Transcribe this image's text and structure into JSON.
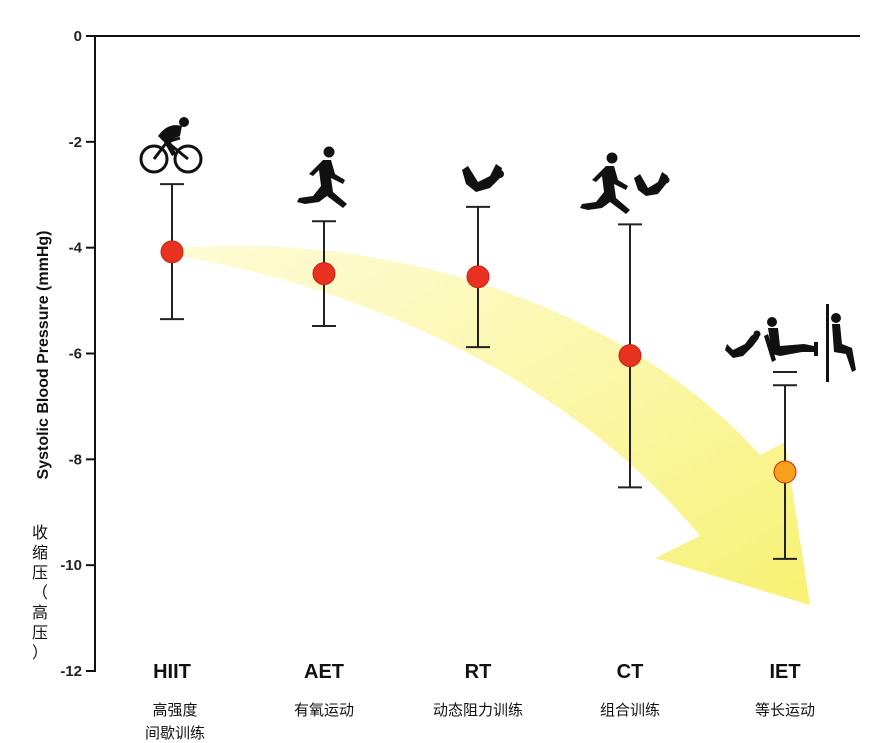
{
  "chart_data": {
    "type": "scatter",
    "ylabel": "Systolic Blood Pressure (mmHg)",
    "ylabel_cn": [
      "收",
      "缩",
      "压",
      "（",
      "高",
      "压",
      "）"
    ],
    "ylim": [
      -12,
      0
    ],
    "yticks": [
      0,
      -2,
      -4,
      -6,
      -8,
      -10,
      -12
    ],
    "grid": false,
    "categories": [
      "HIIT",
      "AET",
      "RT",
      "CT",
      "IET"
    ],
    "categories_cn": [
      [
        "高强度",
        "间歇训练"
      ],
      [
        "有氧运动"
      ],
      [
        "动态阻力训练"
      ],
      [
        "组合训练"
      ],
      [
        "等长运动"
      ]
    ],
    "series": [
      {
        "values": [
          -4.08,
          -4.49,
          -4.55,
          -6.04,
          -8.24
        ],
        "ci_upper": [
          -2.8,
          -3.5,
          -3.23,
          -3.56,
          -6.6
        ],
        "ci_lower": [
          -5.35,
          -5.48,
          -5.88,
          -8.53,
          -9.88
        ],
        "colors": [
          "#e8321f",
          "#e8321f",
          "#e8321f",
          "#e8321f",
          "#f5a21a"
        ]
      }
    ],
    "annotation": "trend-arrow",
    "colors": {
      "point": "#e8321f",
      "point_highlight": "#f5a21a",
      "arrow": "#f9f47a",
      "axis": "#111111"
    },
    "icons": [
      "cyclist-icon",
      "runner-icon",
      "arm-curl-icon",
      "runner-icon",
      "arm-curl-icon",
      "arm-curl-icon",
      "leg-press-icon",
      "wall-squat-icon"
    ]
  }
}
